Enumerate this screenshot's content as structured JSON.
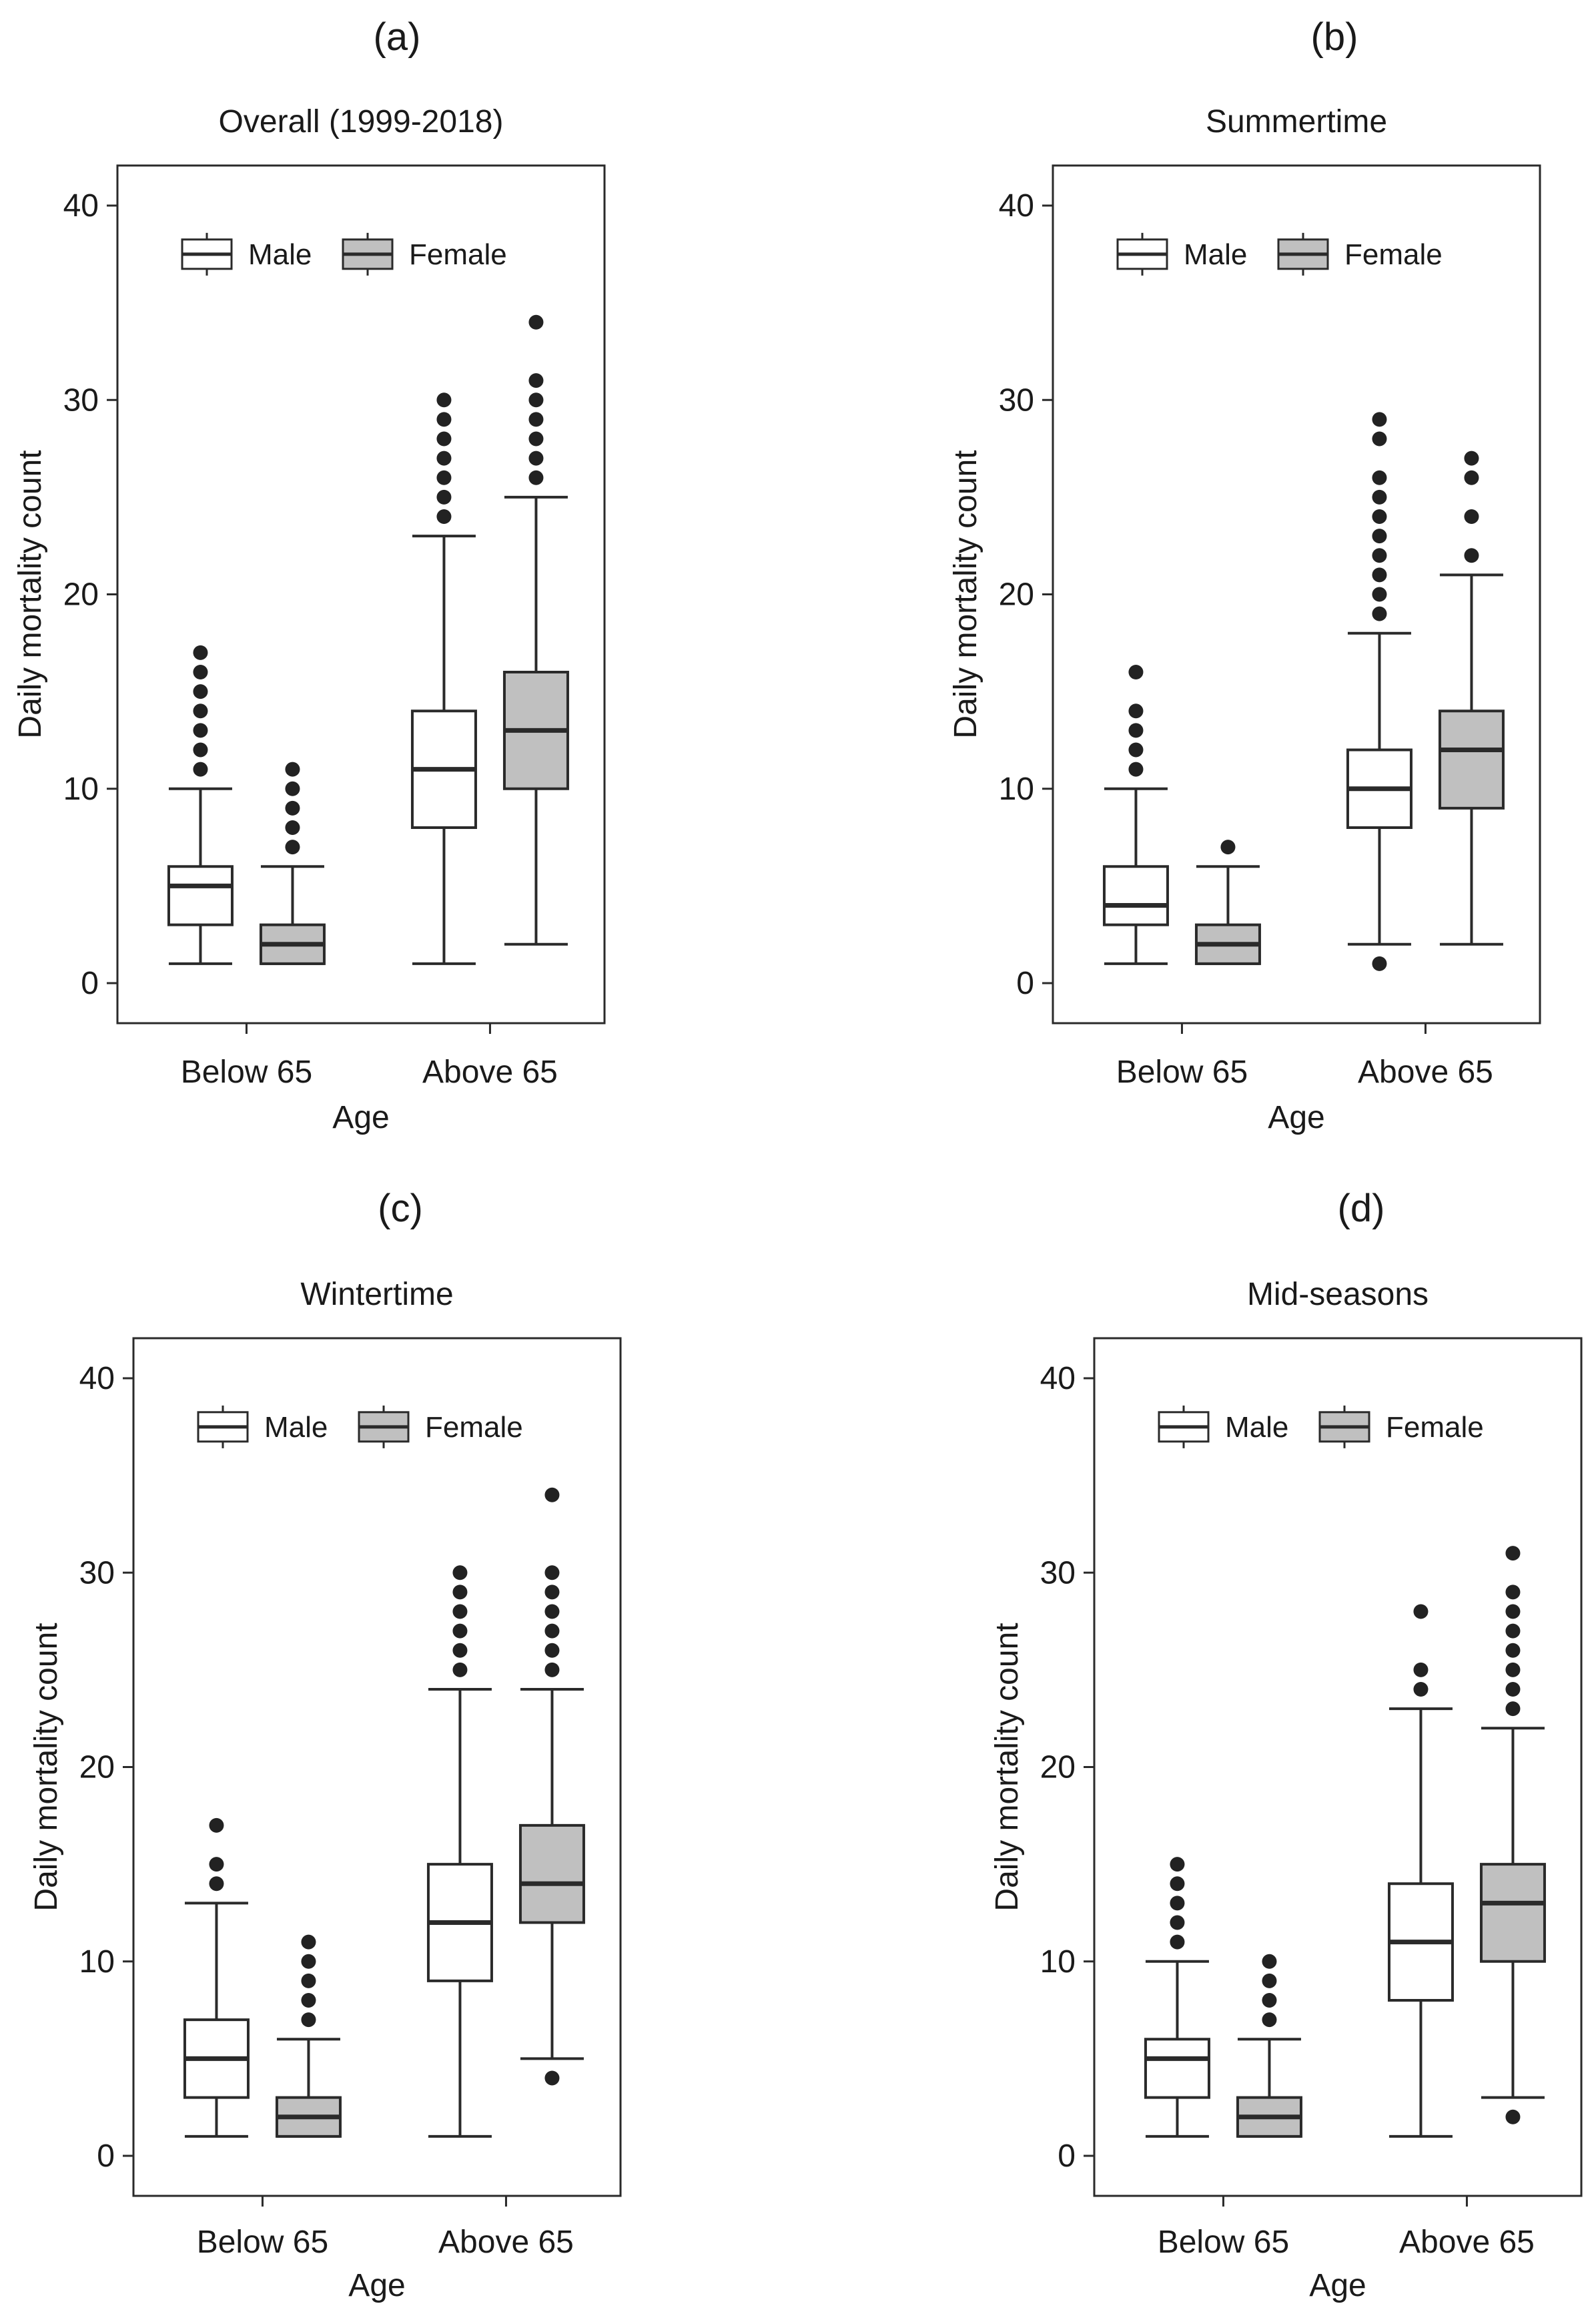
{
  "figure": {
    "colors": {
      "male_fill": "#ffffff",
      "female_fill": "#c0c0c0",
      "stroke": "#2a2a2a",
      "outlier": "#222222"
    }
  },
  "chart_data": [
    {
      "type": "boxplot",
      "panel_label": "(a)",
      "title": "Overall (1999-2018)",
      "xlabel": "Age",
      "ylabel": "Daily mortality count",
      "ylim": [
        0,
        40
      ],
      "yticks": [
        "0",
        "10",
        "20",
        "30",
        "40"
      ],
      "categories": [
        "Below 65",
        "Above 65"
      ],
      "legend": [
        "Male",
        "Female"
      ],
      "series": [
        {
          "name": "Male",
          "boxes": [
            {
              "whisker_low": 1,
              "q1": 3,
              "median": 5,
              "q3": 6,
              "whisker_high": 10,
              "outliers": [
                11,
                12,
                13,
                14,
                15,
                16,
                17
              ]
            },
            {
              "whisker_low": 1,
              "q1": 8,
              "median": 11,
              "q3": 14,
              "whisker_high": 23,
              "outliers": [
                24,
                25,
                26,
                27,
                28,
                29,
                30
              ]
            }
          ]
        },
        {
          "name": "Female",
          "boxes": [
            {
              "whisker_low": 1,
              "q1": 1,
              "median": 2,
              "q3": 3,
              "whisker_high": 6,
              "outliers": [
                7,
                8,
                9,
                10,
                11
              ]
            },
            {
              "whisker_low": 2,
              "q1": 10,
              "median": 13,
              "q3": 16,
              "whisker_high": 25,
              "outliers": [
                26,
                27,
                28,
                29,
                30,
                31,
                34
              ]
            }
          ]
        }
      ]
    },
    {
      "type": "boxplot",
      "panel_label": "(b)",
      "title": "Summertime",
      "xlabel": "Age",
      "ylabel": "Daily mortality count",
      "ylim": [
        0,
        40
      ],
      "yticks": [
        "0",
        "10",
        "20",
        "30",
        "40"
      ],
      "categories": [
        "Below 65",
        "Above 65"
      ],
      "legend": [
        "Male",
        "Female"
      ],
      "series": [
        {
          "name": "Male",
          "boxes": [
            {
              "whisker_low": 1,
              "q1": 3,
              "median": 4,
              "q3": 6,
              "whisker_high": 10,
              "outliers": [
                11,
                12,
                13,
                14,
                16
              ]
            },
            {
              "whisker_low": 2,
              "q1": 8,
              "median": 10,
              "q3": 12,
              "whisker_high": 18,
              "outliers": [
                1,
                19,
                20,
                21,
                22,
                23,
                24,
                25,
                26,
                28,
                29
              ]
            }
          ]
        },
        {
          "name": "Female",
          "boxes": [
            {
              "whisker_low": 1,
              "q1": 1,
              "median": 2,
              "q3": 3,
              "whisker_high": 6,
              "outliers": [
                7
              ]
            },
            {
              "whisker_low": 2,
              "q1": 9,
              "median": 12,
              "q3": 14,
              "whisker_high": 21,
              "outliers": [
                22,
                24,
                26,
                27
              ]
            }
          ]
        }
      ]
    },
    {
      "type": "boxplot",
      "panel_label": "(c)",
      "title": "Wintertime",
      "xlabel": "Age",
      "ylabel": "Daily mortality count",
      "ylim": [
        0,
        40
      ],
      "yticks": [
        "0",
        "10",
        "20",
        "30",
        "40"
      ],
      "categories": [
        "Below 65",
        "Above 65"
      ],
      "legend": [
        "Male",
        "Female"
      ],
      "series": [
        {
          "name": "Male",
          "boxes": [
            {
              "whisker_low": 1,
              "q1": 3,
              "median": 5,
              "q3": 7,
              "whisker_high": 13,
              "outliers": [
                14,
                15,
                17
              ]
            },
            {
              "whisker_low": 1,
              "q1": 9,
              "median": 12,
              "q3": 15,
              "whisker_high": 24,
              "outliers": [
                25,
                26,
                27,
                28,
                29,
                30
              ]
            }
          ]
        },
        {
          "name": "Female",
          "boxes": [
            {
              "whisker_low": 1,
              "q1": 1,
              "median": 2,
              "q3": 3,
              "whisker_high": 6,
              "outliers": [
                7,
                8,
                9,
                10,
                11
              ]
            },
            {
              "whisker_low": 5,
              "q1": 12,
              "median": 14,
              "q3": 17,
              "whisker_high": 24,
              "outliers": [
                4,
                25,
                26,
                27,
                28,
                29,
                30,
                34
              ]
            }
          ]
        }
      ]
    },
    {
      "type": "boxplot",
      "panel_label": "(d)",
      "title": "Mid-seasons",
      "xlabel": "Age",
      "ylabel": "Daily mortality count",
      "ylim": [
        0,
        40
      ],
      "yticks": [
        "0",
        "10",
        "20",
        "30",
        "40"
      ],
      "categories": [
        "Below 65",
        "Above 65"
      ],
      "legend": [
        "Male",
        "Female"
      ],
      "series": [
        {
          "name": "Male",
          "boxes": [
            {
              "whisker_low": 1,
              "q1": 3,
              "median": 5,
              "q3": 6,
              "whisker_high": 10,
              "outliers": [
                11,
                12,
                13,
                14,
                15
              ]
            },
            {
              "whisker_low": 1,
              "q1": 8,
              "median": 11,
              "q3": 14,
              "whisker_high": 23,
              "outliers": [
                24,
                25,
                28
              ]
            }
          ]
        },
        {
          "name": "Female",
          "boxes": [
            {
              "whisker_low": 1,
              "q1": 1,
              "median": 2,
              "q3": 3,
              "whisker_high": 6,
              "outliers": [
                7,
                8,
                9,
                10
              ]
            },
            {
              "whisker_low": 3,
              "q1": 10,
              "median": 13,
              "q3": 15,
              "whisker_high": 22,
              "outliers": [
                2,
                23,
                24,
                25,
                26,
                27,
                28,
                29,
                31
              ]
            }
          ]
        }
      ]
    }
  ]
}
